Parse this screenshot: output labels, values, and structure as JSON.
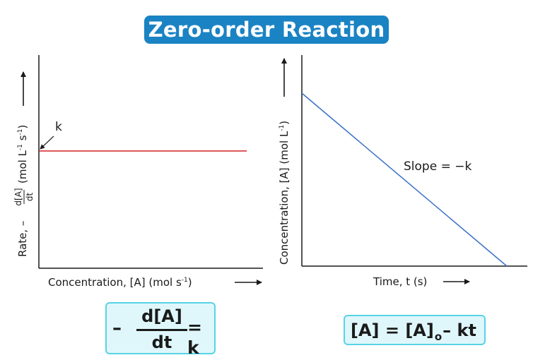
{
  "title": "Zero-order Reaction",
  "colors": {
    "title_bg": "#1a83c3",
    "rate_line": "#d42020",
    "conc_line": "#3b70c6",
    "formula_bg": "#dff7fb",
    "formula_border": "#58d3e6"
  },
  "chart_data": [
    {
      "type": "line",
      "ylabel_prefix": "Rate, –",
      "ylabel_frac_num": "d[A]",
      "ylabel_frac_den": "dt",
      "ylabel_units": "(mol L",
      "ylabel_units_sup1": "-1",
      "ylabel_units_mid": " s",
      "ylabel_units_sup2": "-1",
      "ylabel_units_end": ")",
      "xlabel": "Concentration, [A] (mol s",
      "xlabel_sup": "-1",
      "xlabel_end": ")",
      "annotation": "k",
      "series": [
        {
          "level": 0.55
        }
      ]
    },
    {
      "type": "line",
      "ylabel": "Concentration, [A] (mol L",
      "ylabel_sup": "-1",
      "ylabel_end": ")",
      "xlabel": "Time, t (s)",
      "annotation": "Slope = −k",
      "series": [
        {
          "x": [
            0,
            1
          ],
          "y": [
            1,
            0
          ]
        }
      ]
    }
  ],
  "formulas": {
    "rate_law": {
      "minus": "–",
      "numerator": "d[A]",
      "denominator": "dt",
      "rhs": "= k"
    },
    "integrated": {
      "lhs": "[A] = [A]",
      "subscript": "o",
      "rhs": "– kt"
    }
  }
}
